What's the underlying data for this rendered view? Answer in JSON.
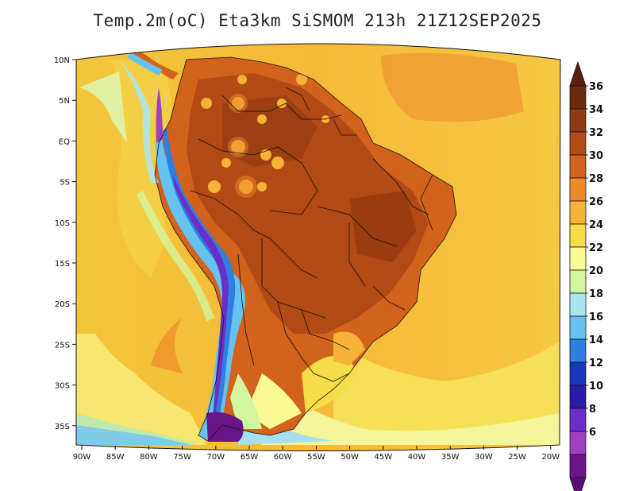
{
  "title": "Temp.2m(oC) Eta3km SiSMOM 213h 21Z12SEP2025",
  "map": {
    "variable": "2 m air temperature",
    "units": "oC",
    "lat_ticks": [
      "10N",
      "5N",
      "EQ",
      "5S",
      "10S",
      "15S",
      "20S",
      "25S",
      "30S",
      "35S"
    ],
    "lon_ticks": [
      "90W",
      "85W",
      "80W",
      "75W",
      "70W",
      "65W",
      "60W",
      "55W",
      "50W",
      "45W",
      "40W",
      "35W",
      "30W",
      "25W",
      "20W"
    ]
  },
  "colorbar": {
    "labels": [
      "36",
      "34",
      "32",
      "30",
      "28",
      "26",
      "24",
      "22",
      "20",
      "18",
      "16",
      "14",
      "12",
      "10",
      "8",
      "6"
    ],
    "colors": [
      "#6b2a0e",
      "#8e3a12",
      "#b24a16",
      "#d2621c",
      "#ee8a2c",
      "#f6b335",
      "#f6dd4a",
      "#fafa96",
      "#d2f5a0",
      "#a8e6f2",
      "#66c3f0",
      "#2f7fe0",
      "#1537b8",
      "#2a1aa8",
      "#6a2fc8",
      "#a040c0",
      "#6a148a"
    ],
    "top_arrow_color": "#5a200a",
    "bottom_arrow_color": "#5a0f78"
  }
}
